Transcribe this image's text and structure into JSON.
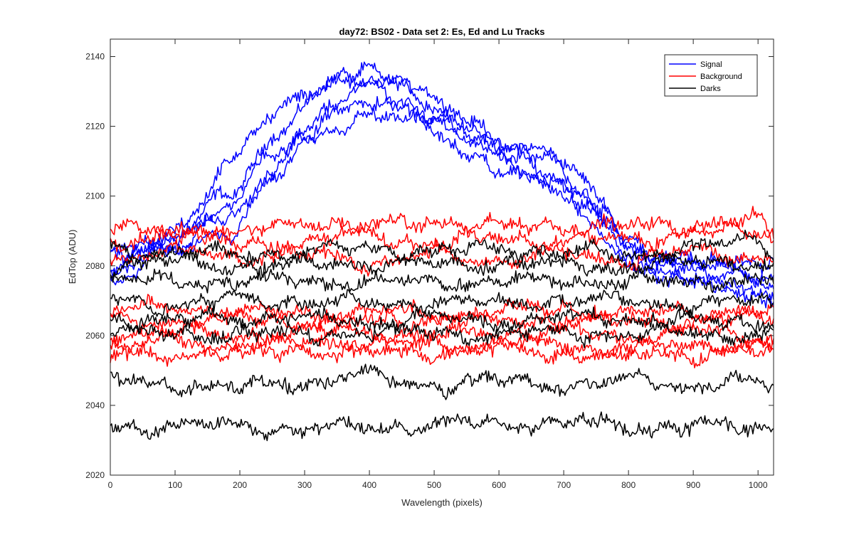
{
  "chart_data": {
    "type": "line",
    "title": "day72: BS02 - Data set 2: Es, Ed and Lu Tracks",
    "xlabel": "Wavelength (pixels)",
    "ylabel": "EdTop (ADU)",
    "xlim": [
      0,
      1024
    ],
    "ylim": [
      2020,
      2145
    ],
    "xticks": [
      0,
      100,
      200,
      300,
      400,
      500,
      600,
      700,
      800,
      900,
      1000
    ],
    "yticks": [
      2020,
      2040,
      2060,
      2080,
      2100,
      2120,
      2140
    ],
    "grid": false,
    "legend_position": "top-right",
    "legend": [
      {
        "label": "Signal",
        "color": "#0000ff"
      },
      {
        "label": "Background",
        "color": "#ff0000"
      },
      {
        "label": "Darks",
        "color": "#000000"
      }
    ],
    "noise_amplitude": 1.1,
    "series": [
      {
        "group": "Signal",
        "color": "#0000ff",
        "x": [
          0,
          100,
          180,
          250,
          300,
          350,
          400,
          450,
          500,
          560,
          620,
          680,
          730,
          760,
          800,
          850,
          900,
          950,
          1024
        ],
        "y": [
          2076,
          2087,
          2101,
          2116,
          2125,
          2133,
          2137,
          2133,
          2127,
          2121,
          2115,
          2112,
          2104,
          2099,
          2088,
          2082,
          2079,
          2075,
          2072
        ]
      },
      {
        "group": "Signal",
        "color": "#0000ff",
        "x": [
          0,
          100,
          180,
          250,
          300,
          350,
          400,
          450,
          500,
          560,
          620,
          680,
          730,
          760,
          800,
          850,
          900,
          950,
          1024
        ],
        "y": [
          2079,
          2088,
          2110,
          2122,
          2129,
          2135,
          2133,
          2131,
          2125,
          2119,
          2113,
          2110,
          2102,
          2096,
          2086,
          2080,
          2077,
          2074,
          2070
        ]
      },
      {
        "group": "Signal",
        "color": "#0000ff",
        "x": [
          0,
          100,
          180,
          250,
          300,
          350,
          400,
          450,
          500,
          560,
          620,
          680,
          730,
          760,
          800,
          850,
          900,
          950,
          1024
        ],
        "y": [
          2082,
          2086,
          2096,
          2112,
          2120,
          2127,
          2131,
          2128,
          2123,
          2117,
          2111,
          2107,
          2100,
          2094,
          2084,
          2078,
          2076,
          2077,
          2074
        ]
      },
      {
        "group": "Signal",
        "color": "#0000ff",
        "x": [
          0,
          100,
          180,
          250,
          300,
          350,
          400,
          450,
          500,
          560,
          620,
          680,
          730,
          760,
          800,
          850,
          900,
          950,
          1024
        ],
        "y": [
          2085,
          2090,
          2093,
          2108,
          2117,
          2123,
          2128,
          2126,
          2121,
          2115,
          2110,
          2104,
          2097,
          2092,
          2082,
          2078,
          2079,
          2080,
          2076
        ]
      },
      {
        "group": "Signal",
        "color": "#0000ff",
        "x": [
          0,
          100,
          180,
          250,
          300,
          350,
          400,
          450,
          500,
          560,
          620,
          680,
          730,
          760,
          800,
          850,
          900,
          950,
          1024
        ],
        "y": [
          2080,
          2084,
          2090,
          2104,
          2114,
          2120,
          2124,
          2122,
          2118,
          2112,
          2107,
          2102,
          2095,
          2090,
          2081,
          2080,
          2081,
          2082,
          2081
        ]
      },
      {
        "group": "Background",
        "color": "#ff0000",
        "x": [
          0,
          100,
          200,
          300,
          400,
          500,
          600,
          700,
          800,
          900,
          1000,
          1024
        ],
        "y": [
          2090,
          2091,
          2089,
          2093,
          2091,
          2093,
          2091,
          2092,
          2091,
          2092,
          2093,
          2089
        ]
      },
      {
        "group": "Background",
        "color": "#ff0000",
        "x": [
          0,
          100,
          200,
          300,
          400,
          500,
          600,
          700,
          800,
          900,
          1000,
          1024
        ],
        "y": [
          2086,
          2090,
          2086,
          2087,
          2089,
          2086,
          2088,
          2087,
          2088,
          2089,
          2090,
          2088
        ]
      },
      {
        "group": "Background",
        "color": "#ff0000",
        "x": [
          0,
          100,
          200,
          300,
          400,
          500,
          600,
          700,
          800,
          900,
          1000,
          1024
        ],
        "y": [
          2082,
          2084,
          2083,
          2083,
          2081,
          2083,
          2082,
          2083,
          2082,
          2084,
          2083,
          2081
        ]
      },
      {
        "group": "Background",
        "color": "#ff0000",
        "x": [
          0,
          100,
          200,
          300,
          400,
          500,
          600,
          700,
          800,
          900,
          1000,
          1024
        ],
        "y": [
          2067,
          2068,
          2067,
          2066,
          2067,
          2066,
          2067,
          2068,
          2066,
          2067,
          2067,
          2066
        ]
      },
      {
        "group": "Background",
        "color": "#ff0000",
        "x": [
          0,
          100,
          200,
          300,
          400,
          500,
          600,
          700,
          800,
          900,
          1000,
          1024
        ],
        "y": [
          2064,
          2064,
          2065,
          2064,
          2064,
          2065,
          2064,
          2065,
          2064,
          2064,
          2065,
          2064
        ]
      },
      {
        "group": "Background",
        "color": "#ff0000",
        "x": [
          0,
          100,
          200,
          300,
          400,
          500,
          600,
          700,
          800,
          900,
          1000,
          1024
        ],
        "y": [
          2061,
          2061,
          2060,
          2061,
          2061,
          2060,
          2061,
          2061,
          2060,
          2061,
          2060,
          2060
        ]
      },
      {
        "group": "Background",
        "color": "#ff0000",
        "x": [
          0,
          100,
          200,
          300,
          400,
          500,
          600,
          700,
          800,
          900,
          1000,
          1024
        ],
        "y": [
          2057,
          2058,
          2057,
          2058,
          2058,
          2057,
          2058,
          2057,
          2056,
          2057,
          2058,
          2057
        ]
      },
      {
        "group": "Background",
        "color": "#ff0000",
        "x": [
          0,
          100,
          200,
          300,
          400,
          500,
          600,
          700,
          800,
          900,
          1000,
          1024
        ],
        "y": [
          2054,
          2055,
          2055,
          2056,
          2055,
          2055,
          2056,
          2055,
          2054,
          2055,
          2055,
          2054
        ]
      },
      {
        "group": "Darks",
        "color": "#000000",
        "x": [
          0,
          100,
          200,
          300,
          400,
          500,
          600,
          700,
          800,
          900,
          1000,
          1024
        ],
        "y": [
          2085,
          2084,
          2083,
          2084,
          2085,
          2084,
          2085,
          2084,
          2083,
          2085,
          2088,
          2083
        ]
      },
      {
        "group": "Darks",
        "color": "#000000",
        "x": [
          0,
          100,
          200,
          300,
          400,
          500,
          600,
          700,
          800,
          900,
          1000,
          1024
        ],
        "y": [
          2080,
          2081,
          2080,
          2080,
          2081,
          2080,
          2081,
          2080,
          2080,
          2081,
          2081,
          2080
        ]
      },
      {
        "group": "Darks",
        "color": "#000000",
        "x": [
          0,
          100,
          200,
          300,
          400,
          500,
          600,
          700,
          800,
          900,
          1000,
          1024
        ],
        "y": [
          2076,
          2076,
          2075,
          2076,
          2075,
          2076,
          2075,
          2076,
          2075,
          2076,
          2075,
          2076
        ]
      },
      {
        "group": "Darks",
        "color": "#000000",
        "x": [
          0,
          100,
          200,
          300,
          400,
          500,
          600,
          700,
          800,
          900,
          1000,
          1024
        ],
        "y": [
          2070,
          2069,
          2070,
          2070,
          2069,
          2070,
          2069,
          2070,
          2070,
          2069,
          2070,
          2069
        ]
      },
      {
        "group": "Darks",
        "color": "#000000",
        "x": [
          0,
          100,
          200,
          300,
          400,
          500,
          600,
          700,
          800,
          900,
          1000,
          1024
        ],
        "y": [
          2065,
          2064,
          2065,
          2065,
          2064,
          2065,
          2064,
          2065,
          2065,
          2064,
          2064,
          2064
        ]
      },
      {
        "group": "Darks",
        "color": "#000000",
        "x": [
          0,
          100,
          200,
          300,
          400,
          500,
          600,
          700,
          800,
          900,
          1000,
          1024
        ],
        "y": [
          2061,
          2060,
          2061,
          2060,
          2061,
          2061,
          2060,
          2061,
          2060,
          2061,
          2060,
          2060
        ]
      },
      {
        "group": "Darks",
        "color": "#000000",
        "x": [
          0,
          100,
          200,
          300,
          400,
          500,
          600,
          700,
          800,
          900,
          1000,
          1024
        ],
        "y": [
          2047,
          2046,
          2045,
          2047,
          2048,
          2046,
          2047,
          2046,
          2047,
          2046,
          2046,
          2045
        ]
      },
      {
        "group": "Darks",
        "color": "#000000",
        "x": [
          0,
          100,
          200,
          300,
          400,
          500,
          600,
          700,
          800,
          900,
          1000,
          1024
        ],
        "y": [
          2034,
          2034,
          2034,
          2033,
          2034,
          2034,
          2035,
          2035,
          2034,
          2034,
          2034,
          2034
        ]
      }
    ]
  }
}
